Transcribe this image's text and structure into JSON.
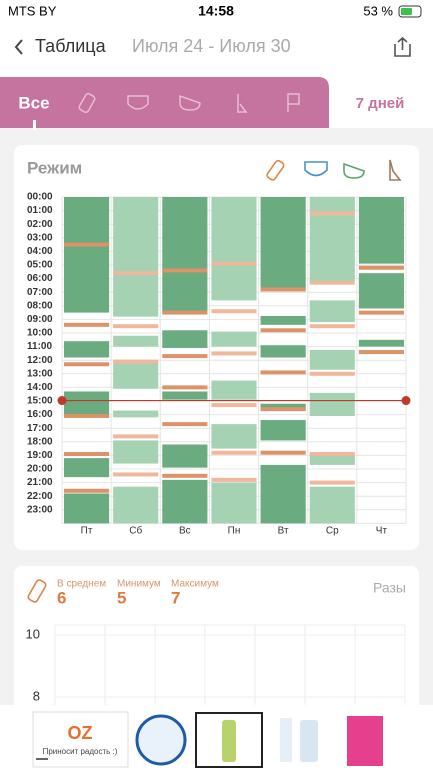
{
  "status_bar": {
    "carrier": "MTS BY",
    "time": "14:58",
    "battery": "53 %"
  },
  "nav": {
    "back": "Таблица",
    "range": "Июля 24 - Июля 30"
  },
  "tabs": {
    "all": "Все",
    "period": "7 дней"
  },
  "schedule": {
    "title": "Режим",
    "hours": [
      "00:00",
      "01:00",
      "02:00",
      "03:00",
      "04:00",
      "05:00",
      "06:00",
      "07:00",
      "08:00",
      "09:00",
      "10:00",
      "11:00",
      "12:00",
      "13:00",
      "14:00",
      "15:00",
      "16:00",
      "17:00",
      "18:00",
      "19:00",
      "20:00",
      "21:00",
      "22:00",
      "23:00"
    ],
    "days": [
      {
        "label": "Пт",
        "color": "#6aab80",
        "feed_color": "#dd9269",
        "sleep": [
          [
            0,
            8.5
          ],
          [
            10.6,
            11.8
          ],
          [
            14.3,
            16.0
          ],
          [
            19.2,
            20.6
          ],
          [
            21.8,
            24
          ]
        ],
        "feeds": [
          3.5,
          9.4,
          12.3,
          16.1,
          18.9,
          21.6
        ]
      },
      {
        "label": "Сб",
        "color": "#a5d2b3",
        "feed_color": "#efb89c",
        "sleep": [
          [
            0,
            8.8
          ],
          [
            10.2,
            11.0
          ],
          [
            12.2,
            14.1
          ],
          [
            15.7,
            16.2
          ],
          [
            17.9,
            19.6
          ],
          [
            21.3,
            24
          ]
        ],
        "feeds": [
          5.6,
          9.5,
          12.1,
          17.6,
          20.4
        ]
      },
      {
        "label": "Вс",
        "color": "#6aab80",
        "feed_color": "#dd9269",
        "sleep": [
          [
            0,
            8.4
          ],
          [
            9.8,
            11.1
          ],
          [
            14.3,
            14.9
          ],
          [
            18.2,
            19.9
          ],
          [
            20.8,
            24
          ]
        ],
        "feeds": [
          5.4,
          8.5,
          11.7,
          14.0,
          16.7,
          20.5
        ]
      },
      {
        "label": "Пн",
        "color": "#a5d2b3",
        "feed_color": "#efb89c",
        "sleep": [
          [
            0,
            7.6
          ],
          [
            9.9,
            11.0
          ],
          [
            13.5,
            14.9
          ],
          [
            16.7,
            18.5
          ],
          [
            21.0,
            24
          ]
        ],
        "feeds": [
          4.9,
          8.4,
          11.5,
          15.3,
          18.8,
          20.8
        ]
      },
      {
        "label": "Вт",
        "color": "#6aab80",
        "feed_color": "#dd9269",
        "sleep": [
          [
            0,
            6.7
          ],
          [
            8.75,
            9.4
          ],
          [
            10.9,
            11.8
          ],
          [
            15.2,
            15.7
          ],
          [
            16.4,
            17.9
          ],
          [
            19.7,
            24
          ]
        ],
        "feeds": [
          6.8,
          9.8,
          12.9,
          15.6,
          18.8
        ]
      },
      {
        "label": "Ср",
        "color": "#a5d2b3",
        "feed_color": "#efb89c",
        "sleep": [
          [
            0,
            6.2
          ],
          [
            7.6,
            9.2
          ],
          [
            11.25,
            12.7
          ],
          [
            14.4,
            16.1
          ],
          [
            19.0,
            19.7
          ],
          [
            21.3,
            24
          ]
        ],
        "feeds": [
          1.2,
          6.3,
          9.5,
          13.0,
          18.9,
          21.0
        ]
      },
      {
        "label": "Чт",
        "color": "#6aab80",
        "feed_color": "#dd9269",
        "sleep": [
          [
            0,
            4.9
          ],
          [
            5.6,
            8.2
          ],
          [
            10.5,
            11.0
          ]
        ],
        "feeds": [
          5.2,
          8.5,
          11.4
        ]
      }
    ]
  },
  "stats": {
    "avg_label": "В среднем",
    "avg": 6,
    "min_label": "Минимум",
    "min": 5,
    "max_label": "Максимум",
    "max": 7,
    "unit_toggle": "Разы",
    "yticks": [
      10,
      8
    ]
  },
  "ad": {
    "logo": "OZ",
    "caption": "Приносит радость :)"
  }
}
